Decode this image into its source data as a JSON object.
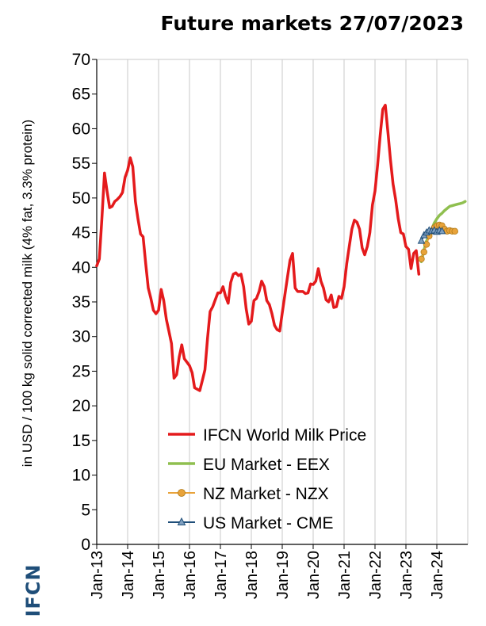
{
  "chart_data": {
    "type": "line",
    "title": "Future markets 27/07/2023",
    "xlabel": "",
    "ylabel": "in USD / 100 kg solid corrected milk (4% fat, 3.3% protein)",
    "ylim": [
      0,
      70
    ],
    "yticks": [
      0,
      5,
      10,
      15,
      20,
      25,
      30,
      35,
      40,
      45,
      50,
      55,
      60,
      65,
      70
    ],
    "xlim": [
      "2013-01",
      "2025-01"
    ],
    "xticks": [
      "Jan-13",
      "Jan-14",
      "Jan-15",
      "Jan-16",
      "Jan-17",
      "Jan-18",
      "Jan-19",
      "Jan-20",
      "Jan-21",
      "Jan-22",
      "Jan-23",
      "Jan-24"
    ],
    "grid": "vertical",
    "legend": "bottom-center",
    "series": [
      {
        "name": "IFCN World Milk Price",
        "color": "#e41a1c",
        "marker": "none",
        "points": [
          [
            "2013-01",
            40.2
          ],
          [
            "2013-02",
            41.2
          ],
          [
            "2013-03",
            47.0
          ],
          [
            "2013-04",
            53.6
          ],
          [
            "2013-05",
            51.0
          ],
          [
            "2013-06",
            48.6
          ],
          [
            "2013-07",
            48.8
          ],
          [
            "2013-08",
            49.5
          ],
          [
            "2013-09",
            49.8
          ],
          [
            "2013-10",
            50.2
          ],
          [
            "2013-11",
            50.8
          ],
          [
            "2013-12",
            53.0
          ],
          [
            "2014-01",
            54.0
          ],
          [
            "2014-02",
            55.8
          ],
          [
            "2014-03",
            54.5
          ],
          [
            "2014-04",
            49.5
          ],
          [
            "2014-05",
            47.0
          ],
          [
            "2014-06",
            44.8
          ],
          [
            "2014-07",
            44.4
          ],
          [
            "2014-08",
            40.5
          ],
          [
            "2014-09",
            37.0
          ],
          [
            "2014-10",
            35.5
          ],
          [
            "2014-11",
            33.8
          ],
          [
            "2014-12",
            33.3
          ],
          [
            "2015-01",
            33.8
          ],
          [
            "2015-02",
            36.8
          ],
          [
            "2015-03",
            35.2
          ],
          [
            "2015-04",
            32.5
          ],
          [
            "2015-05",
            30.8
          ],
          [
            "2015-06",
            29.0
          ],
          [
            "2015-07",
            24.0
          ],
          [
            "2015-08",
            24.5
          ],
          [
            "2015-09",
            27.0
          ],
          [
            "2015-10",
            28.8
          ],
          [
            "2015-11",
            26.8
          ],
          [
            "2015-12",
            26.3
          ],
          [
            "2016-01",
            25.8
          ],
          [
            "2016-02",
            24.8
          ],
          [
            "2016-03",
            22.6
          ],
          [
            "2016-04",
            22.4
          ],
          [
            "2016-05",
            22.2
          ],
          [
            "2016-06",
            23.7
          ],
          [
            "2016-07",
            25.2
          ],
          [
            "2016-08",
            29.8
          ],
          [
            "2016-09",
            33.6
          ],
          [
            "2016-10",
            34.3
          ],
          [
            "2016-11",
            35.3
          ],
          [
            "2016-12",
            36.3
          ],
          [
            "2017-01",
            36.3
          ],
          [
            "2017-02",
            37.2
          ],
          [
            "2017-03",
            35.8
          ],
          [
            "2017-04",
            34.8
          ],
          [
            "2017-05",
            37.8
          ],
          [
            "2017-06",
            39.0
          ],
          [
            "2017-07",
            39.2
          ],
          [
            "2017-08",
            38.8
          ],
          [
            "2017-09",
            39.0
          ],
          [
            "2017-10",
            37.2
          ],
          [
            "2017-11",
            34.0
          ],
          [
            "2017-12",
            31.8
          ],
          [
            "2018-01",
            32.2
          ],
          [
            "2018-02",
            35.2
          ],
          [
            "2018-03",
            35.5
          ],
          [
            "2018-04",
            36.5
          ],
          [
            "2018-05",
            38.0
          ],
          [
            "2018-06",
            37.2
          ],
          [
            "2018-07",
            35.2
          ],
          [
            "2018-08",
            34.6
          ],
          [
            "2018-09",
            33.3
          ],
          [
            "2018-10",
            31.6
          ],
          [
            "2018-11",
            31.0
          ],
          [
            "2018-12",
            30.8
          ],
          [
            "2019-01",
            33.4
          ],
          [
            "2019-02",
            36.0
          ],
          [
            "2019-03",
            38.5
          ],
          [
            "2019-04",
            41.0
          ],
          [
            "2019-05",
            42.0
          ],
          [
            "2019-06",
            37.0
          ],
          [
            "2019-07",
            36.5
          ],
          [
            "2019-08",
            36.5
          ],
          [
            "2019-09",
            36.5
          ],
          [
            "2019-10",
            36.2
          ],
          [
            "2019-11",
            36.3
          ],
          [
            "2019-12",
            37.6
          ],
          [
            "2020-01",
            37.5
          ],
          [
            "2020-02",
            38.0
          ],
          [
            "2020-03",
            39.8
          ],
          [
            "2020-04",
            38.0
          ],
          [
            "2020-05",
            37.0
          ],
          [
            "2020-06",
            35.3
          ],
          [
            "2020-07",
            35.0
          ],
          [
            "2020-08",
            36.0
          ],
          [
            "2020-09",
            34.2
          ],
          [
            "2020-10",
            34.3
          ],
          [
            "2020-11",
            35.8
          ],
          [
            "2020-12",
            35.5
          ],
          [
            "2021-01",
            37.2
          ],
          [
            "2021-02",
            40.5
          ],
          [
            "2021-03",
            43.0
          ],
          [
            "2021-04",
            45.5
          ],
          [
            "2021-05",
            46.8
          ],
          [
            "2021-06",
            46.5
          ],
          [
            "2021-07",
            45.5
          ],
          [
            "2021-08",
            42.8
          ],
          [
            "2021-09",
            41.8
          ],
          [
            "2021-10",
            43.0
          ],
          [
            "2021-11",
            45.0
          ],
          [
            "2021-12",
            49.0
          ],
          [
            "2022-01",
            51.0
          ],
          [
            "2022-02",
            54.8
          ],
          [
            "2022-03",
            59.0
          ],
          [
            "2022-04",
            62.8
          ],
          [
            "2022-05",
            63.4
          ],
          [
            "2022-06",
            59.5
          ],
          [
            "2022-07",
            55.5
          ],
          [
            "2022-08",
            52.0
          ],
          [
            "2022-09",
            49.8
          ],
          [
            "2022-10",
            47.0
          ],
          [
            "2022-11",
            45.0
          ],
          [
            "2022-12",
            44.8
          ],
          [
            "2023-01",
            43.0
          ],
          [
            "2023-02",
            42.6
          ],
          [
            "2023-03",
            39.8
          ],
          [
            "2023-04",
            42.0
          ],
          [
            "2023-05",
            42.4
          ],
          [
            "2023-06",
            39.0
          ]
        ]
      },
      {
        "name": "EU Market - EEX",
        "color": "#8fbf4f",
        "marker": "none",
        "points": [
          [
            "2023-07",
            40.8
          ],
          [
            "2023-08",
            42.5
          ],
          [
            "2023-09",
            43.8
          ],
          [
            "2023-10",
            44.5
          ],
          [
            "2023-11",
            45.5
          ],
          [
            "2023-12",
            46.4
          ],
          [
            "2024-01",
            47.0
          ],
          [
            "2024-02",
            47.5
          ],
          [
            "2024-03",
            47.8
          ],
          [
            "2024-04",
            48.2
          ],
          [
            "2024-05",
            48.5
          ],
          [
            "2024-06",
            48.8
          ],
          [
            "2024-07",
            48.9
          ],
          [
            "2024-08",
            49.0
          ],
          [
            "2024-09",
            49.1
          ],
          [
            "2024-10",
            49.2
          ],
          [
            "2024-11",
            49.3
          ],
          [
            "2024-12",
            49.5
          ]
        ]
      },
      {
        "name": "NZ Market - NZX",
        "color": "#e8a33a",
        "marker": "circle",
        "points": [
          [
            "2023-07",
            41.2
          ],
          [
            "2023-08",
            42.2
          ],
          [
            "2023-09",
            43.3
          ],
          [
            "2023-10",
            44.5
          ],
          [
            "2023-11",
            45.2
          ],
          [
            "2023-12",
            45.7
          ],
          [
            "2024-01",
            46.0
          ],
          [
            "2024-02",
            46.1
          ],
          [
            "2024-03",
            46.0
          ],
          [
            "2024-04",
            45.5
          ],
          [
            "2024-05",
            45.2
          ],
          [
            "2024-06",
            45.3
          ],
          [
            "2024-07",
            45.2
          ],
          [
            "2024-08",
            45.2
          ]
        ]
      },
      {
        "name": "US Market - CME",
        "color": "#1f4e79",
        "marker": "triangle",
        "points": [
          [
            "2023-07",
            43.8
          ],
          [
            "2023-08",
            44.6
          ],
          [
            "2023-09",
            45.0
          ],
          [
            "2023-10",
            45.3
          ],
          [
            "2023-11",
            45.2
          ],
          [
            "2023-12",
            45.3
          ],
          [
            "2024-01",
            45.1
          ],
          [
            "2024-02",
            45.3
          ],
          [
            "2024-03",
            45.2
          ]
        ]
      }
    ]
  },
  "brand": {
    "logo_text": "IFCN",
    "logo_color": "#1f4e79"
  }
}
